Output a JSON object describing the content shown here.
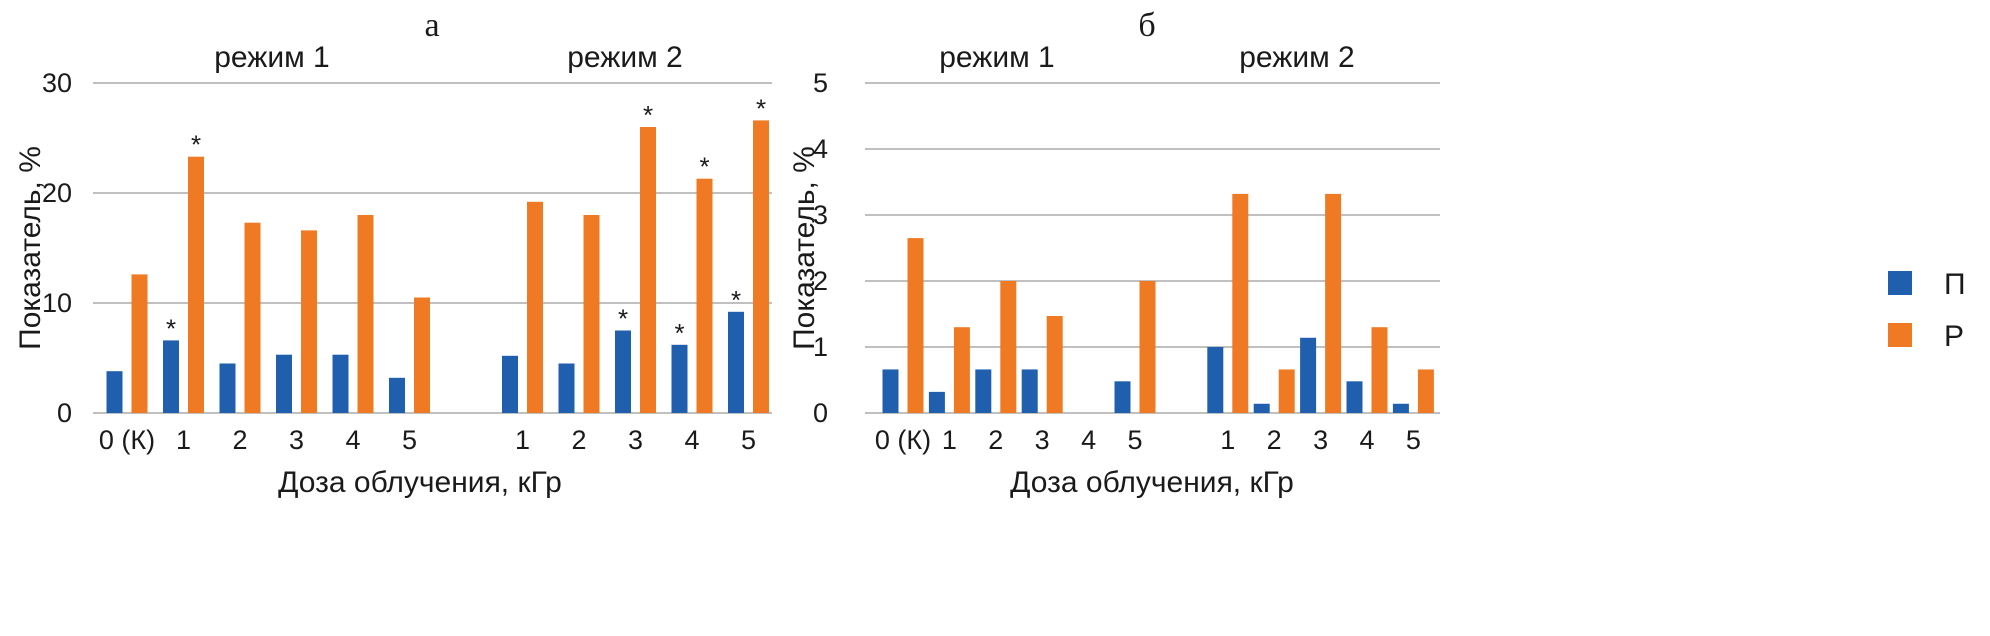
{
  "colors": {
    "П": "#1f5fae",
    "Р": "#f07a23",
    "grid": "#9a9a9a"
  },
  "legend": [
    {
      "name": "П"
    },
    {
      "name": "Р"
    }
  ],
  "chart_data": [
    {
      "type": "bar",
      "panel_label": "а",
      "group_labels": [
        "режим 1",
        "режим 2"
      ],
      "categories": [
        "0 (К)",
        "1",
        "2",
        "3",
        "4",
        "5",
        "",
        "1",
        "2",
        "3",
        "4",
        "5"
      ],
      "xlabel": "Доза облучения, кГр",
      "ylabel": "Показатель, %",
      "ylim": [
        0,
        30
      ],
      "yticks": [
        0,
        10,
        20,
        30
      ],
      "grid": true,
      "series": [
        {
          "name": "П",
          "values": [
            3.8,
            6.6,
            4.5,
            5.3,
            5.3,
            3.2,
            null,
            5.2,
            4.5,
            7.5,
            6.2,
            9.2
          ],
          "stars": [
            false,
            true,
            false,
            false,
            false,
            false,
            false,
            false,
            false,
            true,
            true,
            true
          ]
        },
        {
          "name": "Р",
          "values": [
            12.6,
            23.3,
            17.3,
            16.6,
            18.0,
            10.5,
            null,
            19.2,
            18.0,
            26.0,
            21.3,
            26.6
          ],
          "stars": [
            false,
            true,
            false,
            false,
            false,
            false,
            false,
            false,
            false,
            true,
            true,
            true
          ]
        }
      ]
    },
    {
      "type": "bar",
      "panel_label": "б",
      "group_labels": [
        "режим 1",
        "режим 2"
      ],
      "categories": [
        "0 (К)",
        "1",
        "2",
        "3",
        "4",
        "5",
        "",
        "1",
        "2",
        "3",
        "4",
        "5"
      ],
      "xlabel": "Доза облучения, кГр",
      "ylabel": "Показатель, %",
      "ylim": [
        0,
        5
      ],
      "yticks": [
        0,
        1,
        2,
        3,
        4,
        5
      ],
      "grid": true,
      "series": [
        {
          "name": "П",
          "values": [
            0.66,
            0.32,
            0.66,
            0.66,
            0,
            0.48,
            null,
            1.0,
            0.14,
            1.14,
            0.48,
            0.14
          ],
          "stars": [
            false,
            false,
            false,
            false,
            false,
            false,
            false,
            false,
            false,
            false,
            false,
            false
          ]
        },
        {
          "name": "Р",
          "values": [
            2.65,
            1.3,
            2.0,
            1.47,
            0,
            2.0,
            null,
            3.32,
            0.66,
            3.32,
            1.3,
            0.66
          ],
          "stars": [
            false,
            false,
            false,
            false,
            false,
            false,
            false,
            false,
            false,
            false,
            false,
            false
          ]
        }
      ]
    }
  ]
}
